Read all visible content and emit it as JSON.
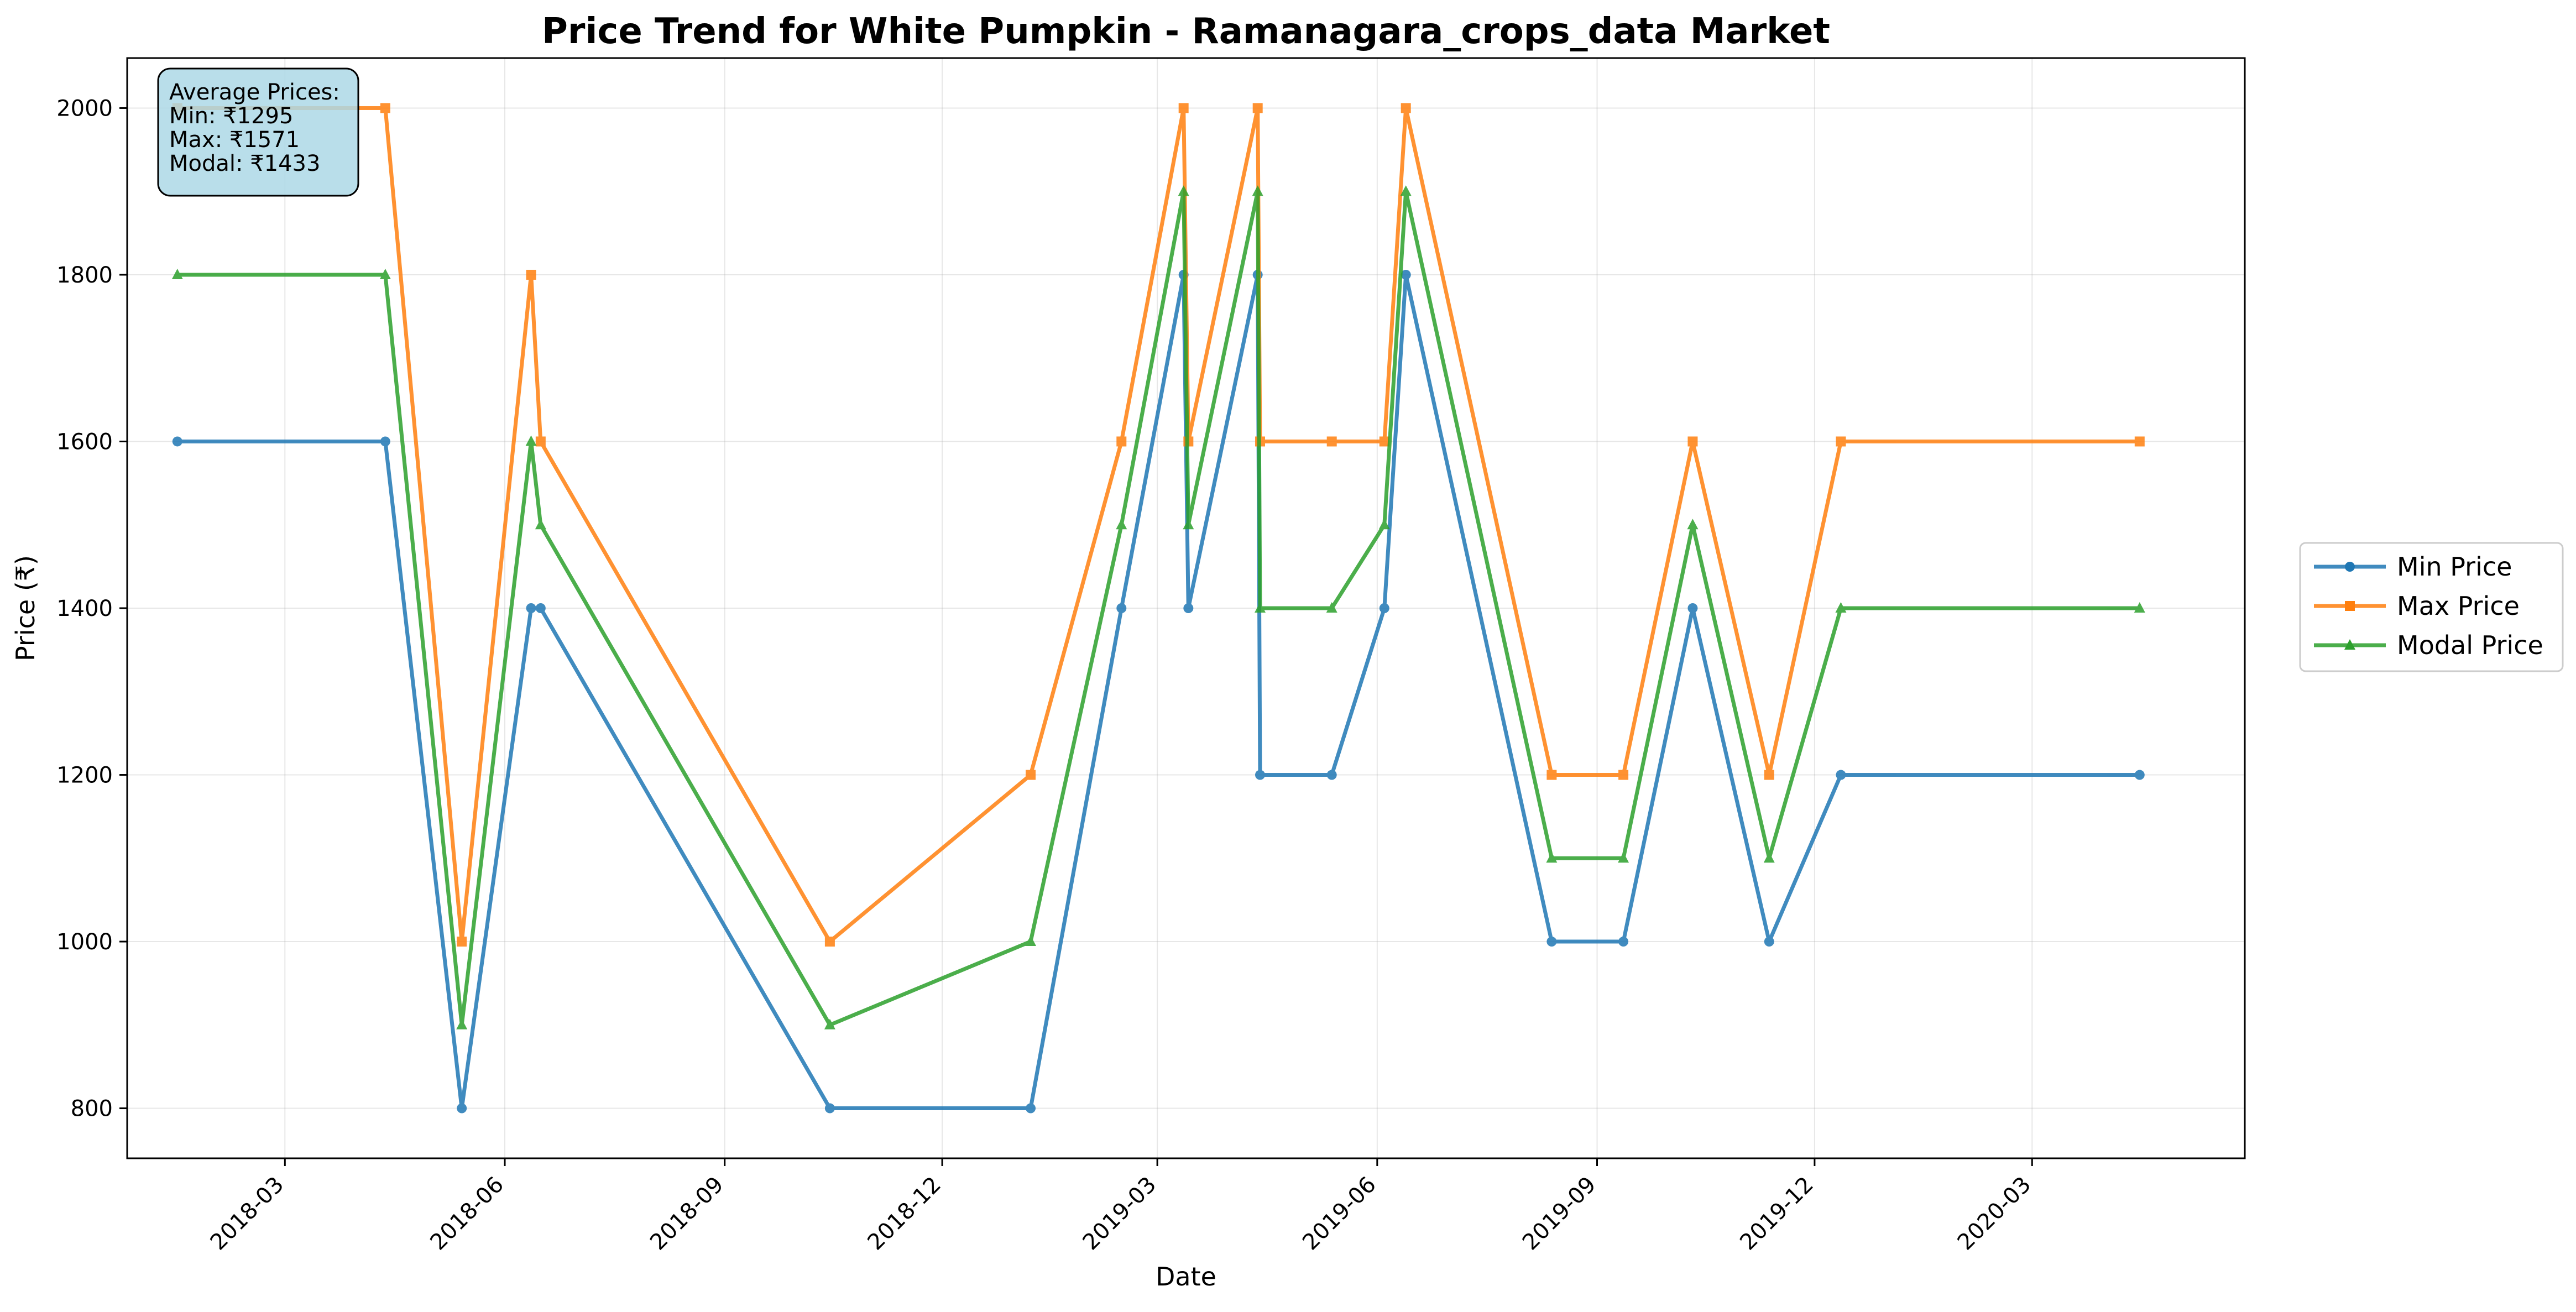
{
  "chart_data": {
    "type": "line",
    "title": "Price Trend for White Pumpkin - Ramanagara_crops_data Market",
    "xlabel": "Date",
    "ylabel": "Price (₹)",
    "ylim": [
      740,
      2060
    ],
    "xlim": [
      "2017-12-25",
      "2020-05-29"
    ],
    "x_ticks": [
      "2018-03",
      "2018-06",
      "2018-09",
      "2018-12",
      "2019-03",
      "2019-06",
      "2019-09",
      "2019-12",
      "2020-03"
    ],
    "y_ticks": [
      800,
      1000,
      1200,
      1400,
      1600,
      1800,
      2000
    ],
    "grid": true,
    "legend_position": "outside right",
    "x": [
      "2018-01-15",
      "2018-04-12",
      "2018-05-14",
      "2018-06-12",
      "2018-06-16",
      "2018-10-15",
      "2019-01-07",
      "2019-02-14",
      "2019-03-12",
      "2019-03-14",
      "2019-04-12",
      "2019-04-13",
      "2019-05-13",
      "2019-06-04",
      "2019-06-13",
      "2019-08-13",
      "2019-09-12",
      "2019-10-11",
      "2019-11-12",
      "2019-12-12",
      "2020-04-15"
    ],
    "series": [
      {
        "name": "Min Price",
        "color": "#1f77b4",
        "marker": "circle",
        "values": [
          1600,
          1600,
          800,
          1400,
          1400,
          800,
          800,
          1400,
          1800,
          1400,
          1800,
          1200,
          1200,
          1400,
          1800,
          1000,
          1000,
          1400,
          1000,
          1200,
          1200
        ]
      },
      {
        "name": "Max Price",
        "color": "#ff7f0e",
        "marker": "square",
        "values": [
          2000,
          2000,
          1000,
          1800,
          1600,
          1000,
          1200,
          1600,
          2000,
          1600,
          2000,
          1600,
          1600,
          1600,
          2000,
          1200,
          1200,
          1600,
          1200,
          1600,
          1600
        ]
      },
      {
        "name": "Modal Price",
        "color": "#2ca02c",
        "marker": "triangle",
        "values": [
          1800,
          1800,
          900,
          1600,
          1500,
          900,
          1000,
          1500,
          1900,
          1500,
          1900,
          1400,
          1400,
          1500,
          1900,
          1100,
          1100,
          1500,
          1100,
          1400,
          1400
        ]
      }
    ],
    "annotation": {
      "lines": [
        "Average Prices:",
        "Min: ₹1295",
        "Max: ₹1571",
        "Modal: ₹1433"
      ],
      "box_color": "#add8e6",
      "position": "top-left"
    }
  }
}
